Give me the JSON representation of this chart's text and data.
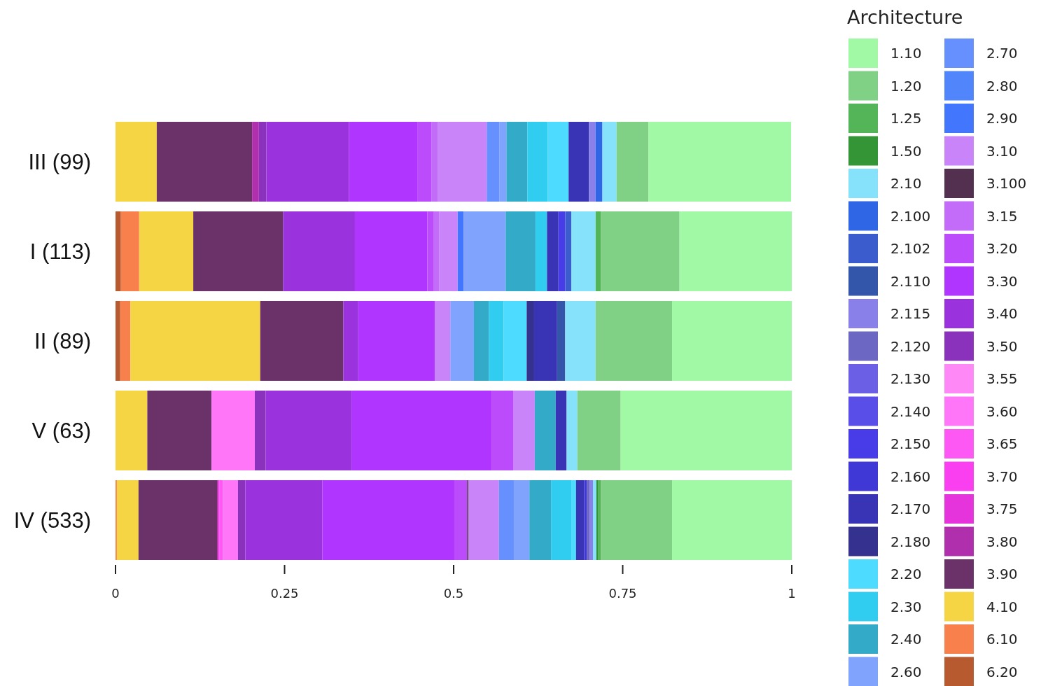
{
  "chart_data": {
    "type": "bar",
    "orientation": "horizontal",
    "stacked": true,
    "legend_title": "Architecture",
    "legend": "right",
    "grid": false,
    "categories": [
      "III (99)",
      "I (113)",
      "II (89)",
      "V (63)",
      "IV (533)"
    ],
    "xlim": [
      0,
      1
    ],
    "xticks": [
      0,
      0.25,
      0.5,
      0.75,
      1
    ],
    "series": [
      {
        "name": "6.20",
        "color": "#b85a30",
        "values": [
          null,
          0.008,
          0.007,
          null,
          null
        ]
      },
      {
        "name": "6.10",
        "color": "#f8804c",
        "values": [
          null,
          0.027,
          0.015,
          null,
          0.002
        ]
      },
      {
        "name": "4.10",
        "color": "#f5d544",
        "values": [
          0.061,
          0.08,
          0.192,
          0.047,
          0.032
        ]
      },
      {
        "name": "3.90",
        "color": "#6a3269",
        "values": [
          0.141,
          0.133,
          0.123,
          0.095,
          0.117
        ]
      },
      {
        "name": "3.80",
        "color": "#b02fad",
        "values": [
          0.01,
          null,
          null,
          null,
          null
        ]
      },
      {
        "name": "3.75",
        "color": "#e634dc",
        "values": [
          null,
          null,
          null,
          null,
          null
        ]
      },
      {
        "name": "3.70",
        "color": "#f93ff0",
        "values": [
          null,
          null,
          null,
          null,
          0.003
        ]
      },
      {
        "name": "3.65",
        "color": "#fd58f3",
        "values": [
          null,
          null,
          null,
          null,
          0.005
        ]
      },
      {
        "name": "3.60",
        "color": "#ff77f8",
        "values": [
          null,
          null,
          null,
          0.064,
          0.022
        ]
      },
      {
        "name": "3.55",
        "color": "#ff88f7",
        "values": [
          null,
          null,
          null,
          null,
          null
        ]
      },
      {
        "name": "3.50",
        "color": "#8a32bb",
        "values": [
          0.011,
          null,
          null,
          0.016,
          0.011
        ]
      },
      {
        "name": "3.40",
        "color": "#9a33dd",
        "values": [
          0.122,
          0.106,
          0.022,
          0.127,
          0.114
        ]
      },
      {
        "name": "3.30",
        "color": "#b035fe",
        "values": [
          0.102,
          0.107,
          0.113,
          0.207,
          0.195
        ]
      },
      {
        "name": "3.20",
        "color": "#bb4bfb",
        "values": [
          0.02,
          0.009,
          null,
          0.032,
          0.019
        ]
      },
      {
        "name": "3.15",
        "color": "#c46cfa",
        "values": [
          0.01,
          0.009,
          null,
          null,
          null
        ]
      },
      {
        "name": "3.100",
        "color": "#53304f",
        "values": [
          null,
          null,
          null,
          null,
          0.002
        ]
      },
      {
        "name": "3.10",
        "color": "#c984fa",
        "values": [
          0.072,
          0.027,
          0.023,
          0.032,
          0.045
        ]
      },
      {
        "name": "2.90",
        "color": "#4277fd",
        "values": [
          null,
          0.009,
          null,
          null,
          null
        ]
      },
      {
        "name": "2.80",
        "color": "#5085fc",
        "values": [
          null,
          null,
          null,
          null,
          null
        ]
      },
      {
        "name": "2.70",
        "color": "#6690fd",
        "values": [
          0.019,
          null,
          null,
          null,
          0.022
        ]
      },
      {
        "name": "2.60",
        "color": "#80a4fe",
        "values": [
          0.01,
          0.062,
          0.035,
          null,
          0.023
        ]
      },
      {
        "name": "2.40",
        "color": "#33aac7",
        "values": [
          0.031,
          0.044,
          0.022,
          0.031,
          0.032
        ]
      },
      {
        "name": "2.30",
        "color": "#31cdf0",
        "values": [
          0.03,
          0.017,
          0.022,
          null,
          0.03
        ]
      },
      {
        "name": "2.20",
        "color": "#4ddcff",
        "values": [
          0.031,
          null,
          0.034,
          null,
          0.007
        ]
      },
      {
        "name": "2.180",
        "color": "#35318f",
        "values": [
          null,
          null,
          0.011,
          null,
          null
        ]
      },
      {
        "name": "2.170",
        "color": "#3933b6",
        "values": [
          0.03,
          0.017,
          0.034,
          0.016,
          0.012
        ]
      },
      {
        "name": "2.160",
        "color": "#3f38d6",
        "values": [
          null,
          null,
          null,
          null,
          0.004
        ]
      },
      {
        "name": "2.150",
        "color": "#483be8",
        "values": [
          null,
          0.01,
          null,
          null,
          null
        ]
      },
      {
        "name": "2.140",
        "color": "#5a4ee8",
        "values": [
          null,
          null,
          null,
          null,
          null
        ]
      },
      {
        "name": "2.130",
        "color": "#6b5fe6",
        "values": [
          null,
          null,
          null,
          null,
          null
        ]
      },
      {
        "name": "2.120",
        "color": "#6c67c2",
        "values": [
          null,
          null,
          null,
          null,
          0.004
        ]
      },
      {
        "name": "2.115",
        "color": "#8a80ea",
        "values": [
          0.01,
          null,
          null,
          null,
          0.005
        ]
      },
      {
        "name": "2.110",
        "color": "#3355aa",
        "values": [
          null,
          null,
          0.012,
          null,
          null
        ]
      },
      {
        "name": "2.102",
        "color": "#3a5ccc",
        "values": [
          null,
          0.009,
          null,
          null,
          null
        ]
      },
      {
        "name": "2.100",
        "color": "#2f66e6",
        "values": [
          0.01,
          null,
          null,
          null,
          null
        ]
      },
      {
        "name": "2.10",
        "color": "#86e1fb",
        "values": [
          0.021,
          0.036,
          0.045,
          0.016,
          0.005
        ]
      },
      {
        "name": "1.50",
        "color": "#349536",
        "values": [
          null,
          null,
          null,
          null,
          0.003
        ]
      },
      {
        "name": "1.25",
        "color": "#53b558",
        "values": [
          null,
          0.008,
          null,
          null,
          0.004
        ]
      },
      {
        "name": "1.20",
        "color": "#80d085",
        "values": [
          0.047,
          0.116,
          0.113,
          0.064,
          0.105
        ]
      },
      {
        "name": "1.10",
        "color": "#a2f9a5",
        "values": [
          0.211,
          0.166,
          0.177,
          0.253,
          0.177
        ]
      }
    ]
  }
}
